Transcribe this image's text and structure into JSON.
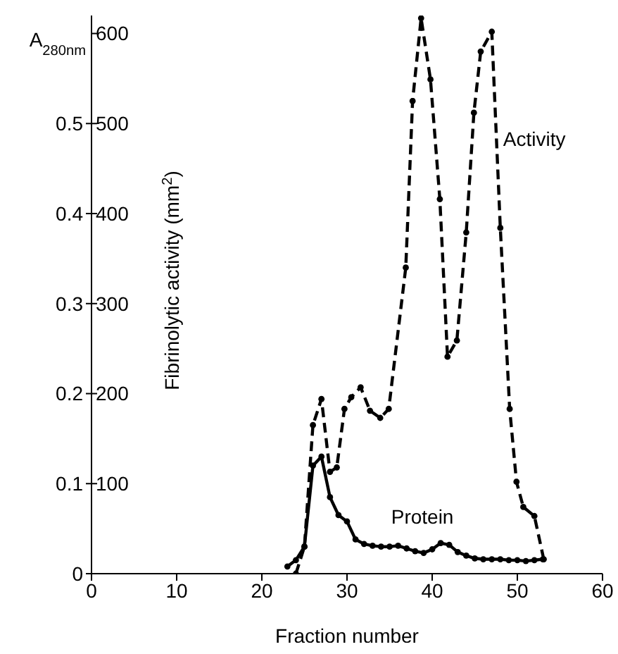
{
  "chart_data": {
    "type": "line",
    "xlabel": "Fraction number",
    "ylabel": "A$_{280nm}$",
    "y2label": "Fibrinolytic activity (mm$^{2}$)",
    "xlim": [
      0,
      60
    ],
    "xticks": [
      0,
      10,
      20,
      30,
      40,
      50,
      60
    ],
    "ylim": [
      0,
      0.62
    ],
    "yticks": [
      0,
      0.1,
      0.2,
      0.3,
      0.4,
      0.5
    ],
    "y2lim": [
      0,
      620
    ],
    "y2ticks": [
      100,
      200,
      300,
      400,
      500,
      600
    ],
    "grid": false,
    "legend": false,
    "marker": "circle",
    "series": [
      {
        "name": "Protein",
        "color": "#000000",
        "line_style": "solid",
        "x": [
          23,
          24,
          25,
          26,
          27,
          28,
          29,
          30,
          31,
          32,
          33,
          34,
          35,
          36,
          37,
          38,
          39,
          40,
          41,
          42,
          43,
          44,
          45,
          46,
          47,
          48,
          49,
          50,
          51,
          52,
          53
        ],
        "values": [
          0.008,
          0.015,
          0.03,
          0.12,
          0.13,
          0.085,
          0.065,
          0.058,
          0.038,
          0.033,
          0.031,
          0.03,
          0.03,
          0.031,
          0.028,
          0.025,
          0.023,
          0.027,
          0.034,
          0.032,
          0.024,
          0.02,
          0.017,
          0.016,
          0.016,
          0.016,
          0.015,
          0.015,
          0.014,
          0.015,
          0.016
        ]
      },
      {
        "name": "Activity",
        "color": "#000000",
        "line_style": "dashed",
        "axis": "y2",
        "x": [
          24,
          25,
          26,
          27,
          28,
          28.8,
          29.7,
          30.5,
          31.6,
          32.7,
          33.9,
          34.9,
          36.9,
          37.7,
          38.7,
          39.8,
          40.9,
          41.8,
          42.9,
          44,
          44.9,
          45.7,
          47,
          48,
          49.1,
          49.9,
          50.7,
          52,
          53.1
        ],
        "values": [
          0,
          30,
          165,
          194,
          113,
          118,
          183,
          196,
          207,
          181,
          173,
          183,
          340,
          525,
          617,
          549,
          416,
          241,
          259,
          379,
          512,
          580,
          602,
          384,
          183,
          102,
          74,
          64,
          16
        ]
      }
    ]
  }
}
